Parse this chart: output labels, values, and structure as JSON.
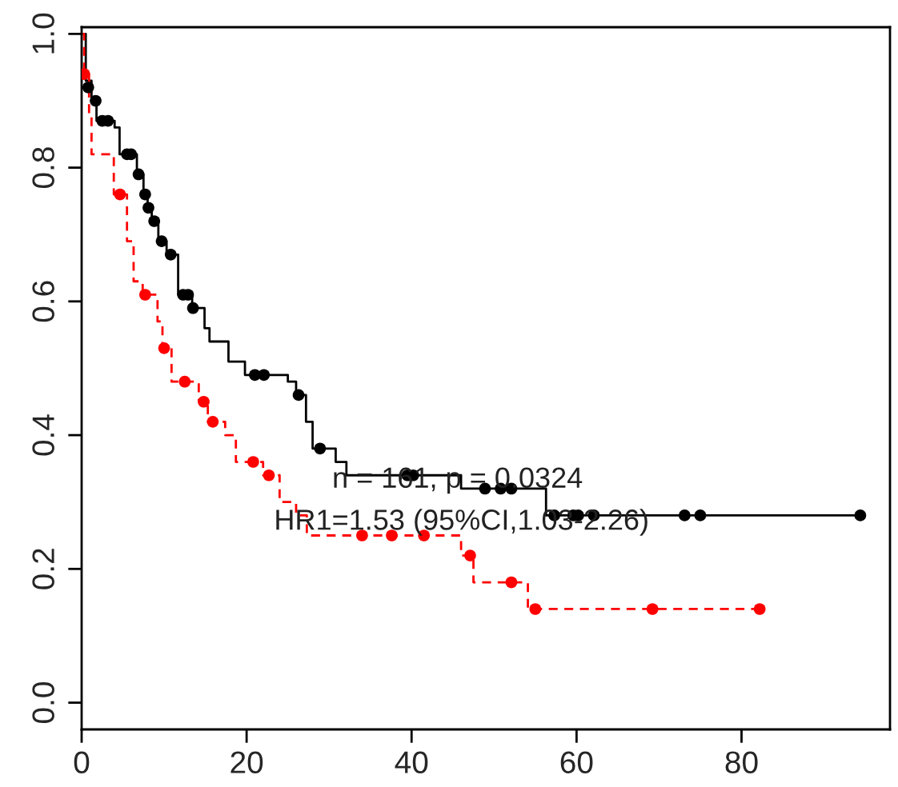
{
  "chart_data": {
    "type": "step",
    "xlim": [
      0,
      98
    ],
    "ylim": [
      -0.04,
      1.01
    ],
    "xticks": [
      0,
      20,
      40,
      60,
      80
    ],
    "yticks": [
      {
        "value": 0,
        "label": "0.0"
      },
      {
        "value": 0.2,
        "label": "0.2"
      },
      {
        "value": 0.4,
        "label": "0.4"
      },
      {
        "value": 0.6,
        "label": "0.6"
      },
      {
        "value": 0.8,
        "label": "0.8"
      },
      {
        "value": 1.0,
        "label": "1.0"
      }
    ],
    "grid": false,
    "annotations": [
      "n = 161, p = 0.0324",
      "HR1=1.53 (95%CI,1.03-2.26)"
    ],
    "series": [
      {
        "color": "#000000",
        "line_style": "solid",
        "marker": "none",
        "x": [
          0,
          0.5,
          1.2,
          1.8,
          4.0,
          4.6,
          6.7,
          7.5,
          8.0,
          8.5,
          9.3,
          10.3,
          11.7,
          13.4,
          14.9,
          15.5,
          17.8,
          19.8,
          25.0,
          26.0,
          27.2,
          28.0,
          30.8,
          32.1,
          46.0,
          56.3,
          94.4
        ],
        "values": [
          1.0,
          0.93,
          0.9,
          0.87,
          0.86,
          0.82,
          0.79,
          0.76,
          0.74,
          0.72,
          0.69,
          0.67,
          0.61,
          0.59,
          0.56,
          0.54,
          0.51,
          0.49,
          0.48,
          0.46,
          0.42,
          0.38,
          0.36,
          0.34,
          0.32,
          0.28,
          0.28
        ]
      },
      {
        "color": "#ff0000",
        "line_style": "dashed",
        "marker": "none",
        "x": [
          0,
          0.3,
          0.9,
          1.2,
          3.9,
          5.5,
          6.3,
          7.4,
          9.2,
          9.8,
          10.9,
          14.2,
          15.3,
          17.4,
          18.7,
          22.0,
          24.0,
          26.0,
          27.3,
          46.0,
          47.5,
          54.1,
          82.2
        ],
        "values": [
          1.0,
          0.94,
          0.88,
          0.82,
          0.76,
          0.69,
          0.63,
          0.61,
          0.57,
          0.53,
          0.48,
          0.45,
          0.42,
          0.4,
          0.36,
          0.34,
          0.3,
          0.28,
          0.25,
          0.22,
          0.18,
          0.14,
          0.14
        ]
      },
      {
        "type": "scatter",
        "color": "#000000",
        "marker": "circle",
        "x": [
          0.8,
          1.7,
          2.5,
          3.2,
          5.5,
          6.0,
          6.9,
          7.7,
          8.1,
          8.8,
          9.7,
          10.8,
          12.3,
          12.9,
          13.5,
          21.0,
          22.1,
          26.3,
          28.9,
          39.5,
          40.2,
          48.9,
          50.8,
          52.1,
          57.3,
          59.6,
          60.2,
          62.1,
          73.1,
          75.0,
          94.4
        ],
        "values": [
          0.92,
          0.9,
          0.87,
          0.87,
          0.82,
          0.82,
          0.79,
          0.76,
          0.74,
          0.72,
          0.69,
          0.67,
          0.61,
          0.61,
          0.59,
          0.49,
          0.49,
          0.46,
          0.38,
          0.34,
          0.34,
          0.32,
          0.32,
          0.32,
          0.28,
          0.28,
          0.28,
          0.28,
          0.28,
          0.28,
          0.28
        ]
      },
      {
        "type": "scatter",
        "color": "#ff0000",
        "marker": "circle",
        "x": [
          0.3,
          4.65,
          7.7,
          10.0,
          12.5,
          14.8,
          15.9,
          20.8,
          22.7,
          34.0,
          37.6,
          41.5,
          47.1,
          52.1,
          55.0,
          69.2,
          82.2
        ],
        "values": [
          0.94,
          0.76,
          0.61,
          0.53,
          0.48,
          0.45,
          0.42,
          0.36,
          0.34,
          0.25,
          0.25,
          0.25,
          0.22,
          0.18,
          0.14,
          0.14,
          0.14
        ]
      }
    ]
  }
}
